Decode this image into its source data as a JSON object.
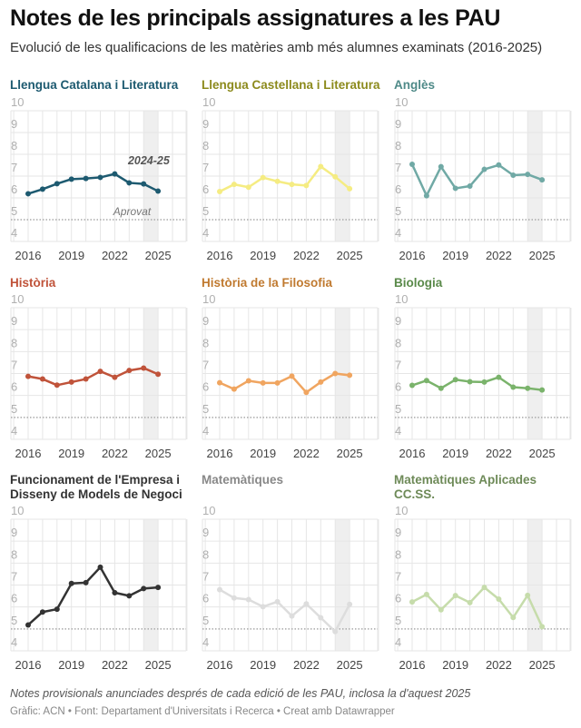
{
  "header": {
    "title": "Notes de les principals assignatures a les PAU",
    "subtitle": "Evolució de les qualificacions de les matèries amb més alumnes examinats (2016-2025)"
  },
  "footer": {
    "notes": "Notes provisionals anunciades després de cada edició de les PAU, inclosa la d'aquest 2025",
    "byline": "Gràfic: ACN • Font: Departament d'Universitats i Recerca • Creat amb Datawrapper"
  },
  "chart_data": {
    "type": "line",
    "layout": "small-multiples 3x3",
    "x": [
      2016,
      2017,
      2018,
      2019,
      2020,
      2021,
      2022,
      2023,
      2024,
      2025
    ],
    "x_tick_labels": [
      "2016",
      "2019",
      "2022",
      "2025"
    ],
    "y_tick_labels": [
      "4",
      "5",
      "6",
      "7",
      "8",
      "9",
      "10"
    ],
    "ylim": [
      4,
      10
    ],
    "grid": true,
    "reference_line": {
      "value": 5,
      "label": "Aprovat",
      "style": "dotted"
    },
    "highlight_band": {
      "from": 2024,
      "to": 2025,
      "label": "2024-25"
    },
    "panels": [
      {
        "title": [
          "Llengua Catalana i Literatura"
        ],
        "title_color": "#1d5a70",
        "color": "#1d5a70",
        "values": [
          6.19,
          6.4,
          6.65,
          6.86,
          6.89,
          6.94,
          7.1,
          6.69,
          6.64,
          6.31
        ]
      },
      {
        "title": [
          "Llengua Castellana i Literatura"
        ],
        "title_color": "#8c8a1c",
        "color": "#f5ec82",
        "values": [
          6.29,
          6.62,
          6.49,
          6.93,
          6.76,
          6.62,
          6.57,
          7.44,
          6.97,
          6.42
        ]
      },
      {
        "title": [
          "Anglès"
        ],
        "title_color": "#4f8a88",
        "color": "#70a9a5",
        "values": [
          7.54,
          6.1,
          7.43,
          6.44,
          6.54,
          7.31,
          7.51,
          7.04,
          7.08,
          6.83
        ]
      },
      {
        "title": [
          "Història"
        ],
        "title_color": "#c0533a",
        "color": "#c0533a",
        "values": [
          6.87,
          6.75,
          6.47,
          6.61,
          6.75,
          7.1,
          6.83,
          7.14,
          7.25,
          6.97
        ]
      },
      {
        "title": [
          "Història de la Filosofia"
        ],
        "title_color": "#c07a30",
        "color": "#f0a560",
        "values": [
          6.58,
          6.29,
          6.67,
          6.57,
          6.57,
          6.88,
          6.14,
          6.61,
          7.0,
          6.92
        ]
      },
      {
        "title": [
          "Biologia"
        ],
        "title_color": "#5a8a4a",
        "color": "#7ab36b",
        "values": [
          6.46,
          6.68,
          6.33,
          6.72,
          6.63,
          6.61,
          6.83,
          6.38,
          6.33,
          6.25
        ]
      },
      {
        "title": [
          "Funcionament de l'Empresa i",
          "Disseny de Models de Negoci"
        ],
        "title_color": "#333333",
        "color": "#333333",
        "values": [
          5.18,
          5.77,
          5.9,
          7.07,
          7.11,
          7.81,
          6.65,
          6.51,
          6.84,
          6.89
        ]
      },
      {
        "title": [
          "Matemàtiques"
        ],
        "title_color": "#888888",
        "color": "#dddddd",
        "values": [
          6.79,
          6.41,
          6.34,
          6.01,
          6.24,
          5.59,
          6.14,
          5.51,
          4.88,
          6.12
        ]
      },
      {
        "title": [
          "Matemàtiques Aplicades",
          "CC.SS."
        ],
        "title_color": "#6e8a58",
        "color": "#c6dcab",
        "values": [
          6.23,
          6.57,
          5.87,
          6.52,
          6.2,
          6.89,
          6.36,
          5.52,
          6.53,
          5.1
        ]
      }
    ]
  }
}
